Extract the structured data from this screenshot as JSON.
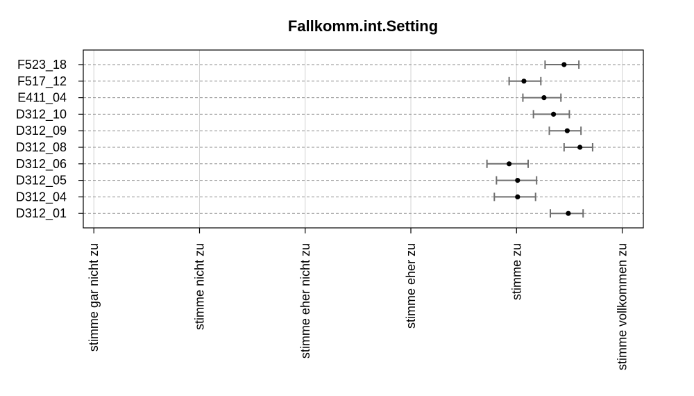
{
  "chart_data": {
    "type": "scatter",
    "subtype": "dot-plot-with-error-bars",
    "title": "Fallkomm.int.Setting",
    "xlabel": "",
    "ylabel": "",
    "x_scale": {
      "min": 1,
      "max": 6,
      "tick_labels": [
        "stimme gar nicht zu",
        "stimme nicht zu",
        "stimme eher nicht zu",
        "stimme eher zu",
        "stimme zu",
        "stimme vollkommen zu"
      ]
    },
    "xlim": [
      0.9,
      6.2
    ],
    "grid": true,
    "series": [
      {
        "points": [
          {
            "label": "F523_18",
            "mean": 5.45,
            "low": 5.27,
            "high": 5.59
          },
          {
            "label": "F517_12",
            "mean": 5.07,
            "low": 4.93,
            "high": 5.23
          },
          {
            "label": "E411_04",
            "mean": 5.26,
            "low": 5.06,
            "high": 5.42
          },
          {
            "label": "D312_10",
            "mean": 5.35,
            "low": 5.16,
            "high": 5.5
          },
          {
            "label": "D312_09",
            "mean": 5.48,
            "low": 5.31,
            "high": 5.61
          },
          {
            "label": "D312_08",
            "mean": 5.6,
            "low": 5.45,
            "high": 5.72
          },
          {
            "label": "D312_06",
            "mean": 4.93,
            "low": 4.72,
            "high": 5.11
          },
          {
            "label": "D312_05",
            "mean": 5.01,
            "low": 4.81,
            "high": 5.19
          },
          {
            "label": "D312_04",
            "mean": 5.01,
            "low": 4.79,
            "high": 5.18
          },
          {
            "label": "D312_01",
            "mean": 5.49,
            "low": 5.32,
            "high": 5.63
          }
        ]
      }
    ]
  }
}
